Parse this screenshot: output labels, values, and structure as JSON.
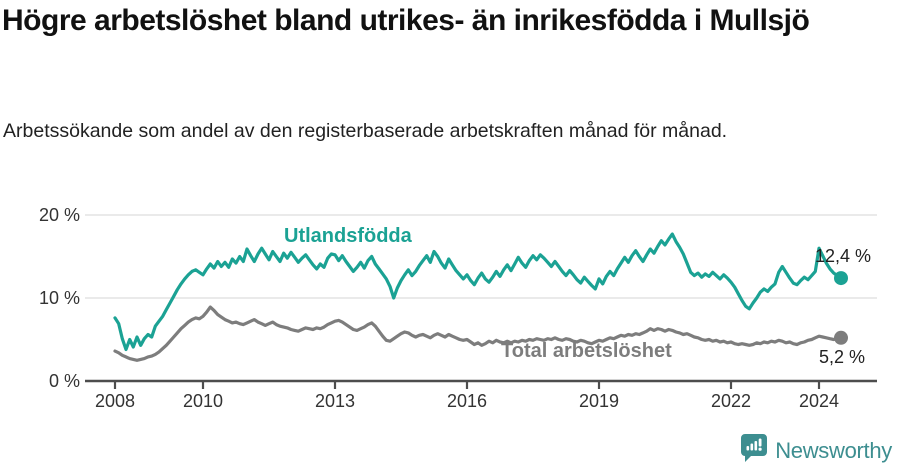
{
  "header": {
    "title": "Högre arbetslöshet bland utrikes- än inrikesfödda i Mullsjö",
    "subtitle": "Arbetssökande som andel av den registerbaserade arbetskraften månad för månad."
  },
  "branding": {
    "logo_text": "Newsworthy",
    "logo_color": "#3d8e90"
  },
  "colors": {
    "utlandsfodda": "#1ba294",
    "total": "#7d7d7d",
    "gridline": "#dedede",
    "axis": "#4d4d4d",
    "tick_text": "#333333"
  },
  "chart_data": {
    "type": "line",
    "title": "Högre arbetslöshet bland utrikes- än inrikesfödda i Mullsjö",
    "subtitle": "Arbetssökande som andel av den registerbaserade arbetskraften månad för månad.",
    "unit": "%",
    "frequency": "monthly",
    "x_start": "2008-01",
    "x_end": "2024-07",
    "ylim": [
      0,
      20
    ],
    "grid": "horizontal",
    "legend_position": "inline-labels",
    "yticks": [
      {
        "v": 0,
        "label": "0 %"
      },
      {
        "v": 10,
        "label": "10 %"
      },
      {
        "v": 20,
        "label": "20 %"
      }
    ],
    "xticks": [
      {
        "year": 2008,
        "label": "2008"
      },
      {
        "year": 2010,
        "label": "2010"
      },
      {
        "year": 2013,
        "label": "2013"
      },
      {
        "year": 2016,
        "label": "2016"
      },
      {
        "year": 2019,
        "label": "2019"
      },
      {
        "year": 2022,
        "label": "2022"
      },
      {
        "year": 2024,
        "label": "2024"
      }
    ],
    "series": [
      {
        "name": "Utlandsfödda",
        "color": "#1ba294",
        "end_label": "12,4 %",
        "end_value": 12.4,
        "values": [
          7.6,
          6.9,
          5.1,
          3.8,
          5.0,
          4.1,
          5.3,
          4.3,
          5.1,
          5.6,
          5.3,
          6.6,
          7.2,
          7.8,
          8.6,
          9.4,
          10.2,
          11.0,
          11.7,
          12.3,
          12.8,
          13.2,
          13.4,
          13.1,
          12.8,
          13.5,
          14.1,
          13.6,
          14.4,
          13.8,
          14.3,
          13.7,
          14.7,
          14.2,
          15.0,
          14.4,
          15.9,
          15.1,
          14.4,
          15.3,
          16.0,
          15.3,
          14.6,
          15.6,
          15.0,
          14.4,
          15.4,
          14.8,
          15.5,
          14.9,
          14.3,
          14.8,
          15.2,
          14.6,
          14.0,
          13.5,
          14.1,
          13.7,
          14.8,
          15.3,
          15.2,
          14.5,
          15.1,
          14.4,
          13.8,
          13.2,
          13.7,
          14.3,
          13.6,
          14.5,
          15.0,
          14.1,
          13.5,
          12.9,
          12.3,
          11.4,
          10.0,
          11.2,
          12.1,
          12.8,
          13.4,
          12.7,
          13.2,
          13.9,
          14.5,
          15.1,
          14.3,
          15.6,
          15.0,
          14.2,
          13.6,
          14.7,
          14.0,
          13.3,
          12.8,
          12.3,
          12.8,
          12.1,
          11.6,
          12.4,
          13.0,
          12.3,
          11.9,
          12.5,
          13.2,
          12.6,
          13.4,
          14.0,
          13.3,
          14.1,
          14.9,
          14.2,
          13.7,
          14.5,
          15.1,
          14.6,
          15.2,
          14.8,
          14.3,
          13.8,
          14.4,
          13.8,
          13.2,
          12.7,
          13.3,
          12.8,
          12.2,
          11.8,
          12.5,
          12.0,
          11.5,
          11.1,
          12.3,
          11.7,
          12.6,
          13.2,
          12.7,
          13.5,
          14.2,
          14.9,
          14.3,
          15.1,
          15.7,
          15.0,
          14.4,
          15.2,
          15.9,
          15.4,
          16.2,
          16.9,
          16.4,
          17.1,
          17.7,
          16.8,
          16.1,
          15.3,
          14.2,
          13.1,
          12.7,
          13.0,
          12.5,
          12.9,
          12.6,
          13.1,
          12.7,
          12.3,
          12.8,
          12.4,
          11.9,
          11.3,
          10.5,
          9.7,
          9.0,
          8.7,
          9.4,
          10.0,
          10.7,
          11.1,
          10.8,
          11.3,
          11.7,
          13.1,
          13.8,
          13.1,
          12.4,
          11.8,
          11.6,
          12.1,
          12.5,
          12.2,
          12.7,
          13.2,
          16.0,
          15.1,
          14.2,
          13.5,
          13.0,
          12.7,
          12.4
        ]
      },
      {
        "name": "Total arbetslöshet",
        "color": "#7d7d7d",
        "end_label": "5,2 %",
        "end_value": 5.2,
        "values": [
          3.6,
          3.4,
          3.1,
          2.9,
          2.7,
          2.6,
          2.5,
          2.6,
          2.7,
          2.9,
          3.0,
          3.2,
          3.5,
          3.9,
          4.3,
          4.8,
          5.3,
          5.8,
          6.3,
          6.7,
          7.1,
          7.4,
          7.6,
          7.5,
          7.8,
          8.3,
          8.9,
          8.5,
          8.0,
          7.7,
          7.4,
          7.2,
          7.0,
          7.1,
          6.9,
          6.8,
          7.0,
          7.2,
          7.4,
          7.1,
          6.9,
          6.7,
          6.9,
          7.1,
          6.8,
          6.6,
          6.5,
          6.4,
          6.2,
          6.1,
          6.0,
          6.2,
          6.4,
          6.3,
          6.2,
          6.4,
          6.3,
          6.5,
          6.8,
          7.0,
          7.2,
          7.3,
          7.1,
          6.8,
          6.5,
          6.2,
          6.1,
          6.3,
          6.5,
          6.8,
          7.0,
          6.6,
          6.0,
          5.4,
          4.9,
          4.8,
          5.1,
          5.4,
          5.7,
          5.9,
          5.8,
          5.5,
          5.3,
          5.5,
          5.6,
          5.4,
          5.2,
          5.5,
          5.7,
          5.5,
          5.3,
          5.6,
          5.4,
          5.2,
          5.0,
          4.9,
          5.0,
          4.7,
          4.4,
          4.6,
          4.3,
          4.5,
          4.8,
          4.6,
          4.9,
          4.7,
          4.6,
          4.8,
          4.6,
          4.8,
          4.7,
          4.9,
          4.8,
          5.0,
          4.9,
          5.1,
          5.0,
          4.9,
          5.1,
          5.0,
          5.2,
          5.0,
          4.9,
          5.1,
          5.0,
          4.8,
          4.7,
          4.9,
          4.8,
          4.6,
          4.5,
          4.7,
          4.9,
          4.8,
          5.0,
          5.2,
          5.1,
          5.3,
          5.5,
          5.4,
          5.6,
          5.5,
          5.7,
          5.6,
          5.8,
          6.0,
          6.3,
          6.1,
          6.3,
          6.2,
          6.0,
          6.2,
          6.1,
          5.9,
          5.8,
          5.6,
          5.7,
          5.5,
          5.3,
          5.2,
          5.0,
          4.9,
          5.0,
          4.8,
          4.9,
          4.7,
          4.8,
          4.6,
          4.7,
          4.5,
          4.4,
          4.5,
          4.4,
          4.3,
          4.4,
          4.6,
          4.5,
          4.7,
          4.6,
          4.8,
          4.7,
          4.9,
          4.8,
          4.6,
          4.7,
          4.5,
          4.4,
          4.6,
          4.7,
          4.9,
          5.0,
          5.2,
          5.4,
          5.3,
          5.2,
          5.1,
          5.0,
          5.1,
          5.2
        ]
      }
    ]
  }
}
